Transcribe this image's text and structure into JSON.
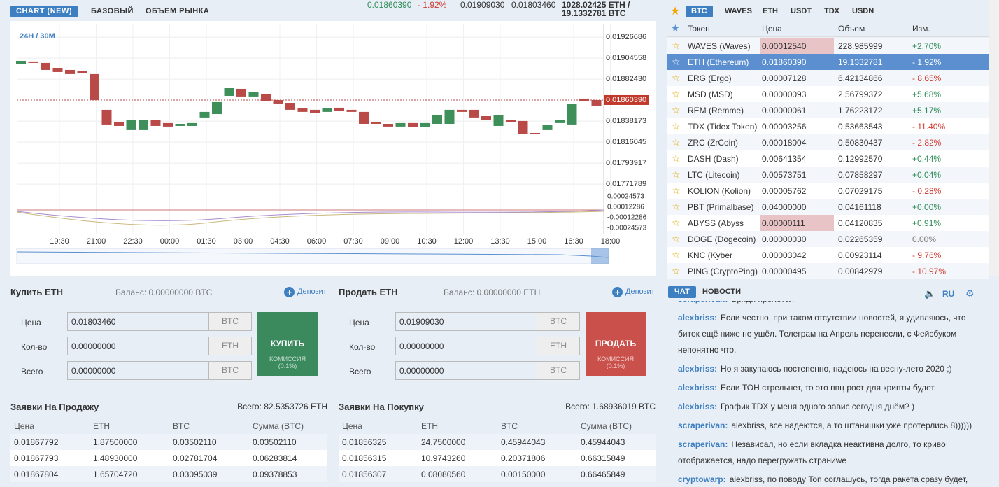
{
  "header": {
    "tabs": [
      "CHART (NEW)",
      "БАЗОВЫЙ",
      "ОБЪЕМ РЫНКА"
    ],
    "price": "0.01860390",
    "change": "- 1.92%",
    "high": "0.01909030",
    "low": "0.01803460",
    "volume": "1028.02425 ETH /",
    "volume_btc": "19.1332781 BTC"
  },
  "chart_data": {
    "type": "candlestick",
    "interval_label": "24H / 30M",
    "times": [
      "19:30",
      "21:00",
      "22:30",
      "00:00",
      "01:30",
      "03:00",
      "04:30",
      "06:00",
      "07:30",
      "09:00",
      "10:30",
      "12:00",
      "13:30",
      "15:00",
      "16:30",
      "18:00"
    ],
    "open": [
      0.01898,
      0.01901,
      0.018995,
      0.018943,
      0.018921,
      0.018906,
      0.018877,
      0.018501,
      0.018368,
      0.018287,
      0.018287,
      0.01839,
      0.018361,
      0.018331,
      0.018331,
      0.01842,
      0.018456,
      0.018648,
      0.018722,
      0.018641,
      0.018663,
      0.018604,
      0.018574,
      0.018515,
      0.018501,
      0.018479,
      0.018523,
      0.018501,
      0.018479,
      0.018368,
      0.018353,
      0.018324,
      0.018361,
      0.018316,
      0.018353,
      0.018353,
      0.018501,
      0.018501,
      0.018434,
      0.018331,
      0.01839,
      0.018383,
      0.018257,
      0.018287,
      0.018361,
      0.018346,
      0.018619,
      0.018604
    ],
    "close": [
      0.019017,
      0.018995,
      0.018921,
      0.018899,
      0.018877,
      0.018884,
      0.018604,
      0.018346,
      0.018331,
      0.01839,
      0.01839,
      0.018331,
      0.018324,
      0.018353,
      0.018361,
      0.018479,
      0.018582,
      0.018729,
      0.018641,
      0.018685,
      0.018589,
      0.018567,
      0.018501,
      0.018479,
      0.018471,
      0.018515,
      0.018493,
      0.018479,
      0.018353,
      0.018353,
      0.018324,
      0.018361,
      0.018316,
      0.018361,
      0.018449,
      0.018501,
      0.018479,
      0.01842,
      0.01839,
      0.018442,
      0.018375,
      0.018243,
      0.018243,
      0.018338,
      0.01839,
      0.01856,
      0.018589,
      0.018545
    ],
    "up_color": "#3f8f5a",
    "down_color": "#b94a48",
    "ylim": [
      0.017667,
      0.019378
    ],
    "yticks": [
      0.01926686,
      0.01904558,
      {
        "value": 0.0188243,
        "label": "0.01882430"
      },
      0.01838173,
      0.01816045,
      0.01793917,
      0.01771789
    ],
    "last_price": {
      "value": 0.0186039,
      "label": "0.01860390"
    },
    "indicator_ticks": [
      0.00024573,
      0.00012286,
      -0.00012286,
      -0.00024573
    ],
    "grid": true
  },
  "market": {
    "tabs": [
      "BTC",
      "WAVES",
      "ETH",
      "USDT",
      "TDX",
      "USDN"
    ],
    "columns": [
      "Токен",
      "Цена",
      "Объем",
      "Изм."
    ],
    "selected_row": 1,
    "flashed_rows": [
      0,
      11
    ],
    "rows": [
      [
        "WAVES (Waves)",
        "0.00012540",
        "228.985999",
        "+2.70%"
      ],
      [
        "ETH (Ethereum)",
        "0.01860390",
        "19.1332781",
        "- 1.92%"
      ],
      [
        "ERG (Ergo)",
        "0.00007128",
        "6.42134866",
        "- 8.65%"
      ],
      [
        "MSD (MSD)",
        "0.00000093",
        "2.56799372",
        "+5.68%"
      ],
      [
        "REM (Remme)",
        "0.00000061",
        "1.76223172",
        "+5.17%"
      ],
      [
        "TDX (Tidex Token)",
        "0.00003256",
        "0.53663543",
        "- 11.40%"
      ],
      [
        "ZRC (ZrCoin)",
        "0.00018004",
        "0.50830437",
        "- 2.82%"
      ],
      [
        "DASH (Dash)",
        "0.00641354",
        "0.12992570",
        "+0.44%"
      ],
      [
        "LTC (Litecoin)",
        "0.00573751",
        "0.07858297",
        "+0.04%"
      ],
      [
        "KOLION (Kolion)",
        "0.00005762",
        "0.07029175",
        "- 0.28%"
      ],
      [
        "PBT (Primalbase)",
        "0.04000000",
        "0.04161118",
        "+0.00%"
      ],
      [
        "ABYSS (Abyss",
        "0.00000111",
        "0.04120835",
        "+0.91%"
      ],
      [
        "DOGE (Dogecoin)",
        "0.00000030",
        "0.02265359",
        "0.00%"
      ],
      [
        "KNC (Kyber",
        "0.00003042",
        "0.00923114",
        "- 9.76%"
      ],
      [
        "PING (CryptoPing)",
        "0.00000495",
        "0.00842979",
        "- 10.97%"
      ]
    ]
  },
  "forms": [
    {
      "title": "Купить ETH",
      "balance": "Баланс: 0.00000000 BTC",
      "deposit": "Депозит",
      "labels": [
        "Цена",
        "Кол-во",
        "Всего"
      ],
      "inputs": [
        "0.01803460",
        "0.00000000",
        "0.00000000"
      ],
      "units": [
        "BTC",
        "ETH",
        "BTC"
      ],
      "button": "КУПИТЬ",
      "commission": "КОМИССИЯ",
      "fee": "(0.1%)"
    },
    {
      "title": "Продать ETH",
      "balance": "Баланс: 0.00000000 ETH",
      "deposit": "Депозит",
      "labels": [
        "Цена",
        "Кол-во",
        "Всего"
      ],
      "inputs": [
        "0.01909030",
        "0.00000000",
        "0.00000000"
      ],
      "units": [
        "BTC",
        "ETH",
        "BTC"
      ],
      "button": "ПРОДАТЬ",
      "commission": "КОМИССИЯ",
      "fee": "(0.1%)"
    }
  ],
  "orderbooks": [
    {
      "title": "Заявки На Продажу",
      "total": "Всего: 82.5353726 ETH",
      "columns": [
        "Цена",
        "ETH",
        "BTC",
        "Сумма (BTC)"
      ],
      "rows": [
        [
          "0.01867792",
          "1.87500000",
          "0.03502110",
          "0.03502110"
        ],
        [
          "0.01867793",
          "1.48930000",
          "0.02781704",
          "0.06283814"
        ],
        [
          "0.01867804",
          "1.65704720",
          "0.03095039",
          "0.09378853"
        ]
      ]
    },
    {
      "title": "Заявки На Покупку",
      "total": "Всего: 1.68936019 BTC",
      "columns": [
        "Цена",
        "ETH",
        "BTC",
        "Сумма (BTC)"
      ],
      "rows": [
        [
          "0.01856325",
          "24.7500000",
          "0.45944043",
          "0.45944043"
        ],
        [
          "0.01856315",
          "10.9743260",
          "0.20371806",
          "0.66315849"
        ],
        [
          "0.01856307",
          "0.08080560",
          "0.00150000",
          "0.66465849"
        ]
      ]
    }
  ],
  "chat": {
    "tabs": [
      "ЧАТ",
      "НОВОСТИ"
    ],
    "lang": "RU",
    "messages": [
      {
        "user": "scraperivan:",
        "text": "Вряди пролетел"
      },
      {
        "user": "alexbriss:",
        "text": "Если честно, при таком отсутствии новостей, я удивляюсь, что биток ещё ниже не ушёл. Телеграм на Апрель перенесли, с Фейсбуком непонятно что."
      },
      {
        "user": "alexbriss:",
        "text": "Но я закупаюсь постепенно, надеюсь на весну-лето 2020 ;)"
      },
      {
        "user": "alexbriss:",
        "text": "Если ТОН стрельнет, то это ппц рост для крипты будет."
      },
      {
        "user": "alexbriss:",
        "text": "График TDX у меня одного завис сегодня днём? )"
      },
      {
        "user": "scraperivan:",
        "text": "alexbriss, все надеются, а то штанишки уже протерлись 8))))))"
      },
      {
        "user": "scraperivan:",
        "text": "Независал, но если вкладка неактивна долго, то криво отображается, надо перегружать страниwe"
      },
      {
        "user": "cryptowarp:",
        "text": "alexbriss, по поводу Ton соглашусь, тогда ракета сразу будет,"
      }
    ]
  }
}
